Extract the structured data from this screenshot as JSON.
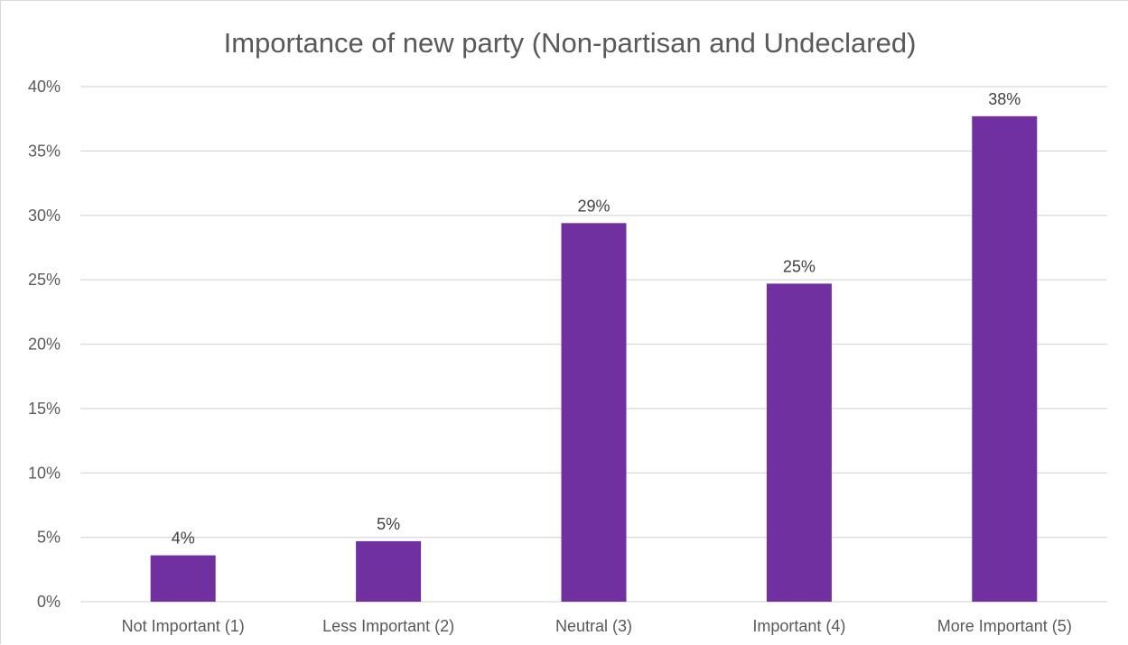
{
  "chart_data": {
    "type": "bar",
    "title": "Importance of new party (Non-partisan and Undeclared)",
    "xlabel": "",
    "ylabel": "",
    "categories": [
      "Not Important (1)",
      "Less Important (2)",
      "Neutral (3)",
      "Important (4)",
      "More Important (5)"
    ],
    "values": [
      3.6,
      4.7,
      29.4,
      24.7,
      37.7
    ],
    "data_labels": [
      "4%",
      "5%",
      "29%",
      "25%",
      "38%"
    ],
    "ylim": [
      0,
      40
    ],
    "yticks": [
      0,
      5,
      10,
      15,
      20,
      25,
      30,
      35,
      40
    ],
    "ytick_labels": [
      "0%",
      "5%",
      "10%",
      "15%",
      "20%",
      "25%",
      "30%",
      "35%",
      "40%"
    ],
    "grid": true,
    "legend": "none",
    "colors": {
      "bar": "#7030a0",
      "grid": "#d9d9d9",
      "text": "#595959"
    }
  }
}
